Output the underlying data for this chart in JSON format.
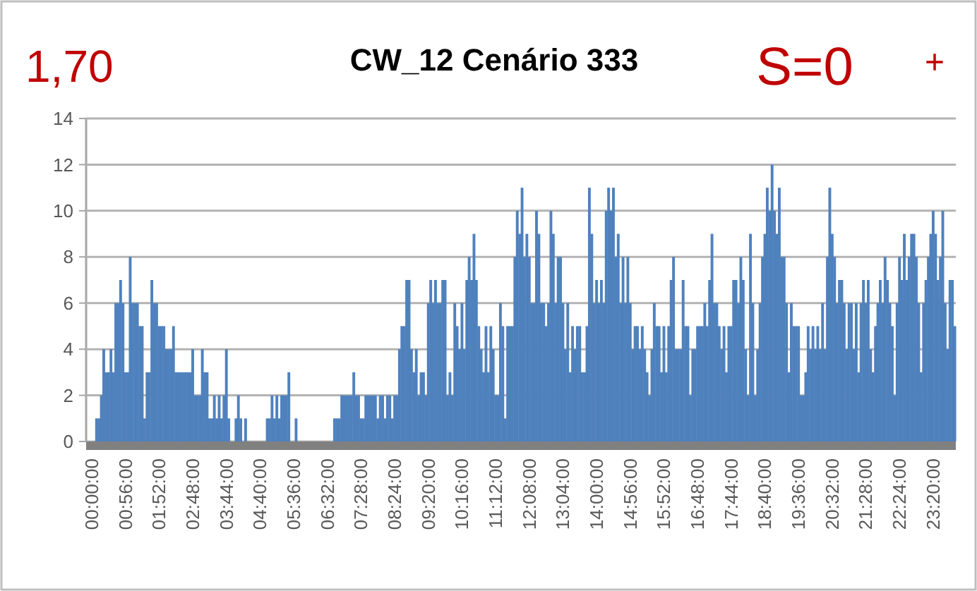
{
  "chart_data": {
    "type": "bar",
    "title": "CW_12 Cenário 333",
    "annotations": [
      "1,70",
      "S=0",
      "+"
    ],
    "categories": [
      "00:00:00",
      null,
      null,
      null,
      null,
      null,
      null,
      null,
      null,
      null,
      null,
      null,
      null,
      null,
      "00:56:00",
      null,
      null,
      null,
      null,
      null,
      null,
      null,
      null,
      null,
      null,
      null,
      null,
      null,
      "01:52:00",
      null,
      null,
      null,
      null,
      null,
      null,
      null,
      null,
      null,
      null,
      null,
      null,
      null,
      "02:48:00",
      null,
      null,
      null,
      null,
      null,
      null,
      null,
      null,
      null,
      null,
      null,
      null,
      null,
      "03:44:00",
      null,
      null,
      null,
      null,
      null,
      null,
      null,
      null,
      null,
      null,
      null,
      null,
      null,
      "04:40:00",
      null,
      null,
      null,
      null,
      null,
      null,
      null,
      null,
      null,
      null,
      null,
      null,
      null,
      "05:36:00",
      null,
      null,
      null,
      null,
      null,
      null,
      null,
      null,
      null,
      null,
      null,
      null,
      null,
      "06:32:00",
      null,
      null,
      null,
      null,
      null,
      null,
      null,
      null,
      null,
      null,
      null,
      null,
      null,
      "07:28:00",
      null,
      null,
      null,
      null,
      null,
      null,
      null,
      null,
      null,
      null,
      null,
      null,
      null,
      "08:24:00",
      null,
      null,
      null,
      null,
      null,
      null,
      null,
      null,
      null,
      null,
      null,
      null,
      null,
      "09:20:00",
      null,
      null,
      null,
      null,
      null,
      null,
      null,
      null,
      null,
      null,
      null,
      null,
      null,
      "10:16:00",
      null,
      null,
      null,
      null,
      null,
      null,
      null,
      null,
      null,
      null,
      null,
      null,
      null,
      "11:12:00",
      null,
      null,
      null,
      null,
      null,
      null,
      null,
      null,
      null,
      null,
      null,
      null,
      null,
      "12:08:00",
      null,
      null,
      null,
      null,
      null,
      null,
      null,
      null,
      null,
      null,
      null,
      null,
      null,
      "13:04:00",
      null,
      null,
      null,
      null,
      null,
      null,
      null,
      null,
      null,
      null,
      null,
      null,
      null,
      "14:00:00",
      null,
      null,
      null,
      null,
      null,
      null,
      null,
      null,
      null,
      null,
      null,
      null,
      null,
      "14:56:00",
      null,
      null,
      null,
      null,
      null,
      null,
      null,
      null,
      null,
      null,
      null,
      null,
      null,
      "15:52:00",
      null,
      null,
      null,
      null,
      null,
      null,
      null,
      null,
      null,
      null,
      null,
      null,
      null,
      "16:48:00",
      null,
      null,
      null,
      null,
      null,
      null,
      null,
      null,
      null,
      null,
      null,
      null,
      null,
      "17:44:00",
      null,
      null,
      null,
      null,
      null,
      null,
      null,
      null,
      null,
      null,
      null,
      null,
      null,
      "18:40:00",
      null,
      null,
      null,
      null,
      null,
      null,
      null,
      null,
      null,
      null,
      null,
      null,
      null,
      "19:36:00",
      null,
      null,
      null,
      null,
      null,
      null,
      null,
      null,
      null,
      null,
      null,
      null,
      null,
      "20:32:00",
      null,
      null,
      null,
      null,
      null,
      null,
      null,
      null,
      null,
      null,
      null,
      null,
      null,
      "21:28:00",
      null,
      null,
      null,
      null,
      null,
      null,
      null,
      null,
      null,
      null,
      null,
      null,
      null,
      "22:24:00",
      null,
      null,
      null,
      null,
      null,
      null,
      null,
      null,
      null,
      null,
      null,
      null,
      null,
      "23:20:00",
      null,
      null,
      null,
      null,
      null,
      null,
      null,
      null,
      null
    ],
    "values": [
      0,
      0,
      1,
      1,
      2,
      4,
      3,
      3,
      4,
      3,
      6,
      6,
      7,
      6,
      3,
      3,
      8,
      6,
      6,
      6,
      5,
      5,
      1,
      3,
      3,
      7,
      6,
      6,
      5,
      5,
      5,
      4,
      4,
      4,
      5,
      3,
      3,
      3,
      3,
      3,
      3,
      3,
      4,
      2,
      2,
      2,
      4,
      3,
      3,
      1,
      1,
      2,
      1,
      2,
      1,
      2,
      4,
      1,
      0,
      0,
      1,
      2,
      1,
      0,
      1,
      0,
      0,
      0,
      0,
      0,
      0,
      0,
      0,
      1,
      1,
      2,
      1,
      2,
      1,
      2,
      2,
      2,
      3,
      0,
      0,
      1,
      0,
      0,
      0,
      0,
      0,
      0,
      0,
      0,
      0,
      0,
      0,
      0,
      0,
      0,
      0,
      1,
      1,
      1,
      2,
      2,
      2,
      2,
      2,
      3,
      2,
      2,
      1,
      1,
      2,
      2,
      2,
      2,
      2,
      1,
      2,
      2,
      1,
      2,
      2,
      1,
      2,
      2,
      4,
      5,
      5,
      7,
      7,
      4,
      3,
      4,
      2,
      3,
      3,
      2,
      6,
      7,
      6,
      7,
      6,
      6,
      7,
      7,
      2,
      3,
      2,
      6,
      5,
      4,
      6,
      4,
      7,
      8,
      7,
      9,
      7,
      5,
      4,
      3,
      5,
      3,
      5,
      4,
      2,
      2,
      6,
      5,
      1,
      5,
      5,
      5,
      8,
      10,
      9,
      11,
      8,
      9,
      8,
      6,
      6,
      10,
      9,
      6,
      6,
      5,
      6,
      10,
      9,
      6,
      8,
      8,
      6,
      4,
      6,
      3,
      5,
      4,
      5,
      5,
      3,
      3,
      5,
      11,
      9,
      6,
      7,
      6,
      7,
      6,
      10,
      11,
      10,
      11,
      8,
      9,
      6,
      8,
      6,
      8,
      6,
      4,
      5,
      5,
      4,
      5,
      4,
      3,
      2,
      4,
      6,
      5,
      5,
      3,
      5,
      3,
      5,
      7,
      8,
      4,
      4,
      4,
      7,
      5,
      5,
      2,
      4,
      4,
      5,
      5,
      5,
      6,
      5,
      7,
      9,
      6,
      6,
      5,
      4,
      5,
      3,
      5,
      5,
      7,
      7,
      6,
      8,
      7,
      4,
      2,
      9,
      6,
      2,
      4,
      6,
      8,
      9,
      11,
      10,
      12,
      10,
      9,
      11,
      8,
      8,
      6,
      3,
      6,
      5,
      5,
      5,
      2,
      2,
      3,
      5,
      4,
      5,
      4,
      5,
      4,
      6,
      4,
      8,
      11,
      9,
      8,
      6,
      7,
      7,
      6,
      4,
      6,
      6,
      4,
      6,
      3,
      6,
      7,
      6,
      7,
      4,
      3,
      5,
      6,
      7,
      6,
      8,
      7,
      6,
      5,
      2,
      6,
      8,
      7,
      9,
      7,
      8,
      9,
      9,
      8,
      6,
      3,
      6,
      7,
      8,
      9,
      10,
      9,
      7,
      8,
      10,
      6,
      4,
      7,
      7,
      5
    ],
    "color": "#4f81bd",
    "ylim": [
      0,
      14
    ],
    "yticks": [
      0,
      2,
      4,
      6,
      8,
      10,
      12,
      14
    ],
    "grid": "y"
  }
}
